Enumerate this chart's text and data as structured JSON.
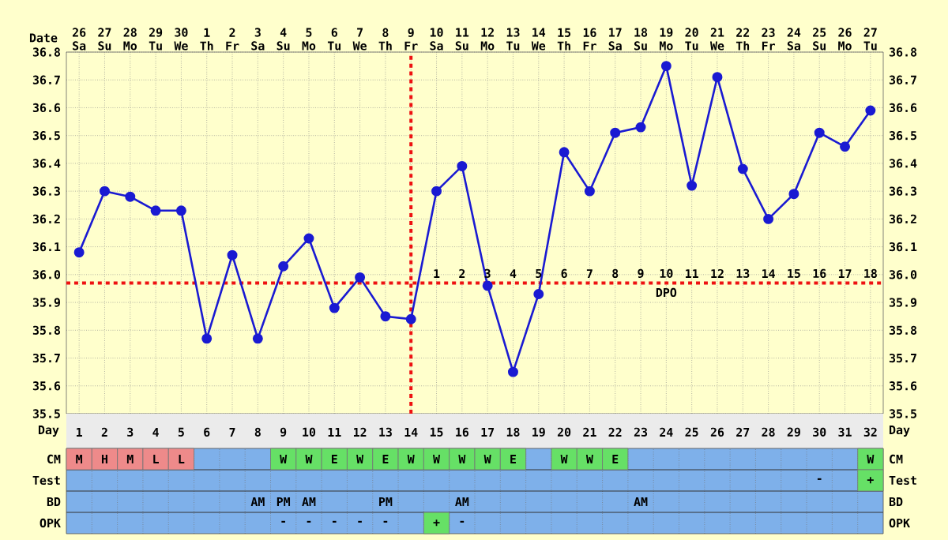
{
  "chart_data": [
    {
      "type": "line",
      "xlabel": "Date",
      "categories": [
        "26 Sa",
        "27 Su",
        "28 Mo",
        "29 Tu",
        "30 We",
        "1 Th",
        "2 Fr",
        "3 Sa",
        "4 Su",
        "5 Mo",
        "6 Tu",
        "7 We",
        "8 Th",
        "9 Fr",
        "10 Sa",
        "11 Su",
        "12 Mo",
        "13 Tu",
        "14 We",
        "15 Th",
        "16 Fr",
        "17 Sa",
        "18 Su",
        "19 Mo",
        "20 Tu",
        "21 We",
        "22 Th",
        "23 Fr",
        "24 Sa",
        "25 Su",
        "26 Mo",
        "27 Tu"
      ],
      "ylim": [
        35.5,
        36.8
      ],
      "yticks": [
        {
          "value": 35.5,
          "label": "35.5"
        },
        {
          "value": 35.6,
          "label": "35.6"
        },
        {
          "value": 35.7,
          "label": "35.7"
        },
        {
          "value": 35.8,
          "label": "35.8"
        },
        {
          "value": 35.9,
          "label": "35.9"
        },
        {
          "value": 36.0,
          "label": "36.0"
        },
        {
          "value": 36.1,
          "label": "36.1"
        },
        {
          "value": 36.2,
          "label": "36.2"
        },
        {
          "value": 36.3,
          "label": "36.3"
        },
        {
          "value": 36.4,
          "label": "36.4"
        },
        {
          "value": 36.5,
          "label": "36.5"
        },
        {
          "value": 36.6,
          "label": "36.6"
        },
        {
          "value": 36.7,
          "label": "36.7"
        },
        {
          "value": 36.8,
          "label": "36.8"
        }
      ],
      "y2lim": [
        35.5,
        36.8
      ],
      "y2ticks": [
        {
          "value": 35.5,
          "label": "35.5"
        },
        {
          "value": 35.6,
          "label": "35.6"
        },
        {
          "value": 35.7,
          "label": "35.7"
        },
        {
          "value": 35.8,
          "label": "35.8"
        },
        {
          "value": 35.9,
          "label": "35.9"
        },
        {
          "value": 36.0,
          "label": "36.0"
        },
        {
          "value": 36.1,
          "label": "36.1"
        },
        {
          "value": 36.2,
          "label": "36.2"
        },
        {
          "value": 36.3,
          "label": "36.3"
        },
        {
          "value": 36.4,
          "label": "36.4"
        },
        {
          "value": 36.5,
          "label": "36.5"
        },
        {
          "value": 36.6,
          "label": "36.6"
        },
        {
          "value": 36.7,
          "label": "36.7"
        },
        {
          "value": 36.8,
          "label": "36.8"
        }
      ],
      "series": [
        {
          "color": "#1a1ad2",
          "values": [
            36.08,
            36.3,
            36.28,
            36.23,
            36.23,
            35.77,
            36.07,
            35.77,
            36.03,
            36.13,
            35.88,
            35.99,
            35.85,
            35.84,
            36.3,
            36.39,
            35.96,
            35.65,
            35.93,
            36.44,
            36.3,
            36.51,
            36.53,
            36.75,
            36.32,
            36.71,
            36.38,
            36.2,
            36.29,
            36.51,
            36.46,
            36.59
          ]
        }
      ],
      "marker": "circle",
      "grid": true,
      "ref_lines": [
        {
          "axis": "y",
          "value": 35.97,
          "color": "#ee1111",
          "line_style": "dotted"
        },
        {
          "axis": "x",
          "value": "9 Fr",
          "color": "#ee1111",
          "line_style": "dotted"
        }
      ],
      "annotations": [
        {
          "text": "1",
          "x": "10 Sa",
          "y": 35.97
        },
        {
          "text": "2",
          "x": "11 Su",
          "y": 35.97
        },
        {
          "text": "3",
          "x": "12 Mo",
          "y": 35.97
        },
        {
          "text": "4",
          "x": "13 Tu",
          "y": 35.97
        },
        {
          "text": "5",
          "x": "14 We",
          "y": 35.97
        },
        {
          "text": "6",
          "x": "15 Th",
          "y": 35.97
        },
        {
          "text": "7",
          "x": "16 Fr",
          "y": 35.97
        },
        {
          "text": "8",
          "x": "17 Sa",
          "y": 35.97
        },
        {
          "text": "9",
          "x": "18 Su",
          "y": 35.97
        },
        {
          "text": "10",
          "x": "19 Mo",
          "y": 35.97
        },
        {
          "text": "11",
          "x": "20 Tu",
          "y": 35.97
        },
        {
          "text": "12",
          "x": "21 We",
          "y": 35.97
        },
        {
          "text": "13",
          "x": "22 Th",
          "y": 35.97
        },
        {
          "text": "14",
          "x": "23 Fr",
          "y": 35.97
        },
        {
          "text": "15",
          "x": "24 Sa",
          "y": 35.97
        },
        {
          "text": "16",
          "x": "25 Su",
          "y": 35.97
        },
        {
          "text": "17",
          "x": "26 Mo",
          "y": 35.97
        },
        {
          "text": "18",
          "x": "27 Tu",
          "y": 35.97
        },
        "DPO"
      ]
    },
    {
      "type": "heatmap",
      "xlabel": "Day",
      "categories": [
        "1",
        "2",
        "3",
        "4",
        "5",
        "6",
        "7",
        "8",
        "9",
        "10",
        "11",
        "12",
        "13",
        "14",
        "15",
        "16",
        "17",
        "18",
        "19",
        "20",
        "21",
        "22",
        "23",
        "24",
        "25",
        "26",
        "27",
        "28",
        "29",
        "30",
        "31",
        "32"
      ],
      "y_categories": [
        "CM",
        "Test",
        "BD",
        "OPK"
      ],
      "y2_categories": [
        "CM",
        "Test",
        "BD",
        "OPK"
      ],
      "cells": [
        [
          null,
          null,
          null,
          null,
          null,
          null,
          null,
          null,
          null,
          null,
          null,
          null,
          null,
          null,
          null,
          null,
          null,
          null,
          null,
          null,
          null,
          null,
          null,
          null,
          null,
          null,
          null,
          null,
          null,
          null,
          null,
          null
        ],
        [
          null,
          null,
          null,
          null,
          null,
          null,
          null,
          null,
          null,
          null,
          null,
          null,
          null,
          null,
          null,
          null,
          null,
          null,
          null,
          null,
          null,
          null,
          null,
          null,
          null,
          null,
          null,
          null,
          null,
          null,
          null,
          null
        ],
        [
          null,
          null,
          null,
          null,
          null,
          null,
          null,
          null,
          null,
          null,
          null,
          null,
          null,
          null,
          null,
          null,
          null,
          null,
          null,
          null,
          null,
          null,
          null,
          null,
          null,
          null,
          null,
          null,
          null,
          null,
          null,
          null
        ],
        [
          null,
          null,
          null,
          null,
          null,
          null,
          null,
          null,
          null,
          null,
          null,
          null,
          null,
          null,
          null,
          null,
          null,
          null,
          null,
          null,
          null,
          null,
          null,
          null,
          null,
          null,
          null,
          null,
          null,
          null,
          null,
          null
        ]
      ],
      "colors": [
        [
          "#ee8a8a",
          "#ee8a8a",
          "#ee8a8a",
          "#ee8a8a",
          "#ee8a8a",
          null,
          null,
          null,
          "#66e066",
          "#66e066",
          "#66e066",
          "#66e066",
          "#66e066",
          "#66e066",
          "#66e066",
          "#66e066",
          "#66e066",
          "#66e066",
          null,
          "#66e066",
          "#66e066",
          "#66e066",
          null,
          null,
          null,
          null,
          null,
          null,
          null,
          null,
          null,
          "#66e066"
        ],
        [
          null,
          null,
          null,
          null,
          null,
          null,
          null,
          null,
          null,
          null,
          null,
          null,
          null,
          null,
          null,
          null,
          null,
          null,
          null,
          null,
          null,
          null,
          null,
          null,
          null,
          null,
          null,
          null,
          null,
          null,
          null,
          "#66e066"
        ],
        [
          null,
          null,
          null,
          null,
          null,
          null,
          null,
          null,
          null,
          null,
          null,
          null,
          null,
          null,
          null,
          null,
          null,
          null,
          null,
          null,
          null,
          null,
          null,
          null,
          null,
          null,
          null,
          null,
          null,
          null,
          null,
          null
        ],
        [
          null,
          null,
          null,
          null,
          null,
          null,
          null,
          null,
          null,
          null,
          null,
          null,
          null,
          null,
          "#66e066",
          null,
          null,
          null,
          null,
          null,
          null,
          null,
          null,
          null,
          null,
          null,
          null,
          null,
          null,
          null,
          null,
          null
        ]
      ],
      "cell_labels": [
        [
          "M",
          "H",
          "M",
          "L",
          "L",
          null,
          null,
          null,
          "W",
          "W",
          "E",
          "W",
          "E",
          "W",
          "W",
          "W",
          "W",
          "E",
          null,
          "W",
          "W",
          "E",
          null,
          null,
          null,
          null,
          null,
          null,
          null,
          null,
          null,
          "W"
        ],
        [
          null,
          null,
          null,
          null,
          null,
          null,
          null,
          null,
          null,
          null,
          null,
          null,
          null,
          null,
          null,
          null,
          null,
          null,
          null,
          null,
          null,
          null,
          null,
          null,
          null,
          null,
          null,
          null,
          null,
          "-",
          null,
          "+"
        ],
        [
          null,
          null,
          null,
          null,
          null,
          null,
          null,
          "AM",
          "PM",
          "AM",
          null,
          null,
          "PM",
          null,
          null,
          "AM",
          null,
          null,
          null,
          null,
          null,
          null,
          "AM",
          null,
          null,
          null,
          null,
          null,
          null,
          null,
          null,
          null
        ],
        [
          null,
          null,
          null,
          null,
          null,
          null,
          null,
          null,
          "-",
          "-",
          "-",
          "-",
          "-",
          null,
          "+",
          "-",
          null,
          null,
          null,
          null,
          null,
          null,
          null,
          null,
          null,
          null,
          null,
          null,
          null,
          null,
          null,
          null
        ]
      ]
    }
  ]
}
